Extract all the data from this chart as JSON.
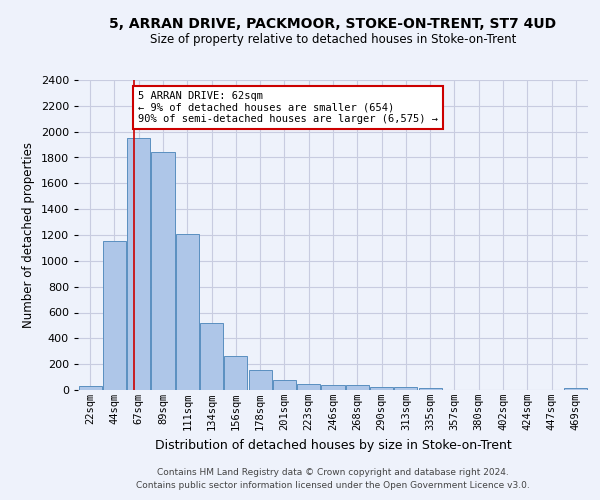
{
  "title": "5, ARRAN DRIVE, PACKMOOR, STOKE-ON-TRENT, ST7 4UD",
  "subtitle": "Size of property relative to detached houses in Stoke-on-Trent",
  "xlabel": "Distribution of detached houses by size in Stoke-on-Trent",
  "ylabel": "Number of detached properties",
  "categories": [
    "22sqm",
    "44sqm",
    "67sqm",
    "89sqm",
    "111sqm",
    "134sqm",
    "156sqm",
    "178sqm",
    "201sqm",
    "223sqm",
    "246sqm",
    "268sqm",
    "290sqm",
    "313sqm",
    "335sqm",
    "357sqm",
    "380sqm",
    "402sqm",
    "424sqm",
    "447sqm",
    "469sqm"
  ],
  "values": [
    30,
    1150,
    1950,
    1840,
    1210,
    515,
    265,
    155,
    80,
    50,
    40,
    40,
    20,
    20,
    15,
    0,
    0,
    0,
    0,
    0,
    15
  ],
  "bar_color": "#aec6e8",
  "bar_edge_color": "#5a8fc0",
  "background_color": "#eef2fb",
  "annotation_text_line1": "5 ARRAN DRIVE: 62sqm",
  "annotation_text_line2": "← 9% of detached houses are smaller (654)",
  "annotation_text_line3": "90% of semi-detached houses are larger (6,575) →",
  "annotation_box_color": "#ffffff",
  "annotation_box_edge_color": "#cc0000",
  "vertical_line_color": "#cc0000",
  "ylim": [
    0,
    2400
  ],
  "yticks": [
    0,
    200,
    400,
    600,
    800,
    1000,
    1200,
    1400,
    1600,
    1800,
    2000,
    2200,
    2400
  ],
  "footer_line1": "Contains HM Land Registry data © Crown copyright and database right 2024.",
  "footer_line2": "Contains public sector information licensed under the Open Government Licence v3.0."
}
